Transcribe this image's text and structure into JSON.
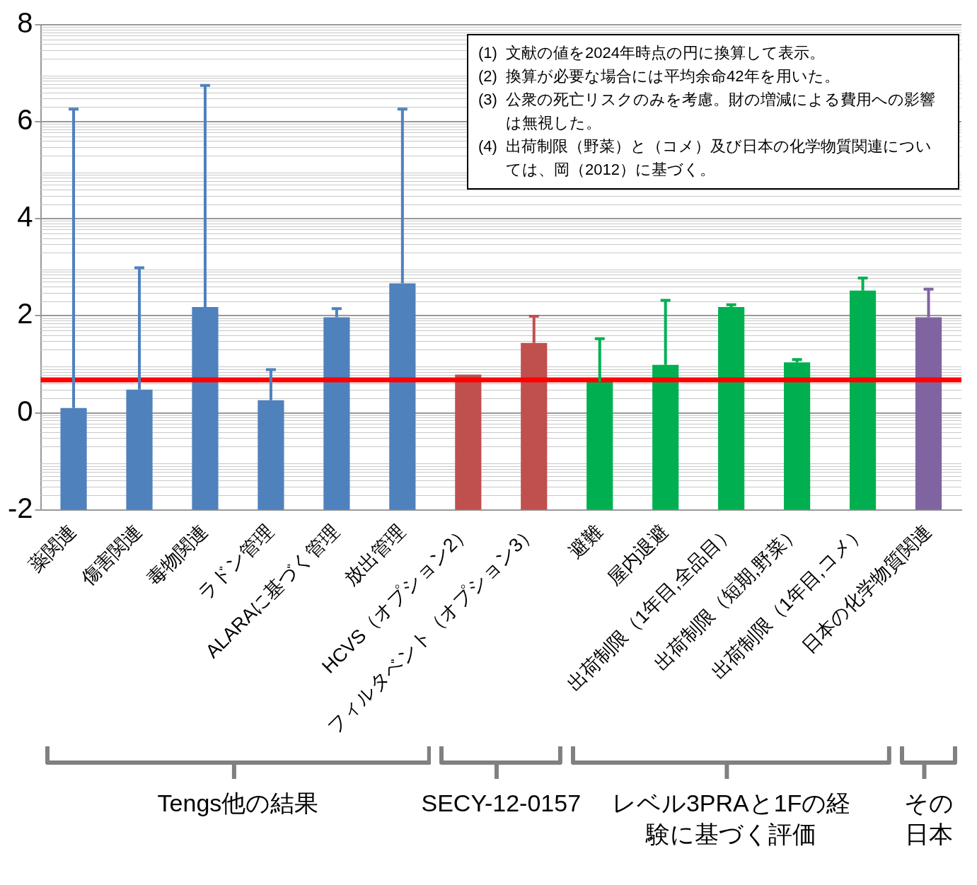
{
  "chart_data": {
    "type": "bar",
    "categories": [
      "薬関連",
      "傷害関連",
      "毒物関連",
      "ラドン管理",
      "ALARAに基づく管理",
      "放出管理",
      "HCVS（オプション2）",
      "フィルタベント（オプション3）",
      "避難",
      "屋内退避",
      "出荷制限（1年目,全品目）",
      "出荷制限（短期,野菜）",
      "出荷制限（1年目,コメ）",
      "日本の化学物質関連"
    ],
    "values": [
      2.1,
      2.48,
      4.18,
      2.26,
      3.97,
      4.67,
      2.79,
      3.44,
      2.64,
      2.99,
      4.18,
      3.04,
      4.52,
      3.97
    ],
    "base": [
      -2,
      -2,
      -2,
      -2,
      -2,
      -2,
      -2,
      -2,
      -2,
      -2,
      -2,
      -2,
      -2,
      -2
    ],
    "colors": [
      "#4f81bd",
      "#4f81bd",
      "#4f81bd",
      "#4f81bd",
      "#4f81bd",
      "#4f81bd",
      "#c0504d",
      "#c0504d",
      "#00b050",
      "#00b050",
      "#00b050",
      "#00b050",
      "#00b050",
      "#8064a2"
    ],
    "errors": [
      [
        0.1,
        6.26
      ],
      [
        0.48,
        2.99
      ],
      [
        2.18,
        6.75
      ],
      [
        0.26,
        0.89
      ],
      [
        1.97,
        2.15
      ],
      [
        2.67,
        6.26
      ],
      null,
      [
        1.44,
        1.99
      ],
      [
        0.64,
        1.53
      ],
      [
        0.99,
        2.32
      ],
      [
        2.18,
        2.23
      ],
      [
        1.04,
        1.1
      ],
      [
        2.52,
        2.78
      ],
      [
        1.97,
        2.55
      ]
    ],
    "ylim": [
      -2,
      8
    ],
    "yticks": [
      -2,
      0,
      2,
      4,
      6,
      8
    ],
    "grid": "y",
    "ref_lines": [
      {
        "axis": "y",
        "value": 0.68,
        "color": "#ff0000"
      }
    ],
    "annotations": [
      "(1)  文献の値を2024年時点の円に換算して表示。",
      "(2)  換算が必要な場合には平均余命42年を用いた。",
      "(3)  公衆の死亡リスクのみを考慮。財の増減による費用への影響は無視した。",
      "(4)  出荷制限（野菜）と（コメ）及び日本の化学物質関連については、岡（2012）に基づく。",
      "Tengs他の結果",
      "SECY-12-0157",
      "レベル3PRAと1Fの経験に基づく評価",
      "その日本"
    ]
  }
}
